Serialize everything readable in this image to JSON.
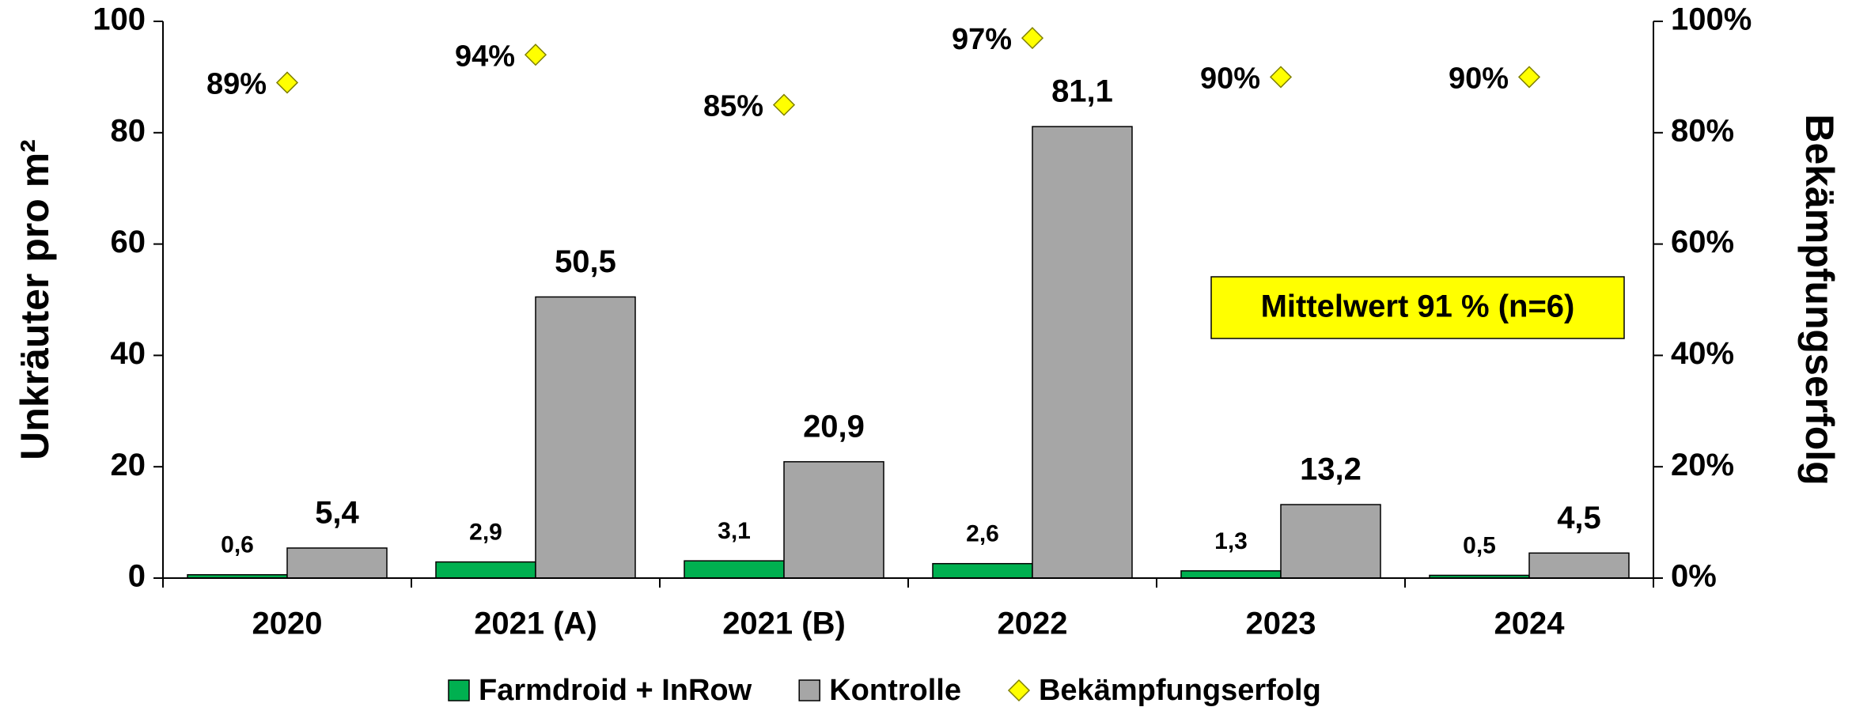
{
  "chart_data": {
    "type": "bar",
    "categories": [
      "2020",
      "2021 (A)",
      "2021 (B)",
      "2022",
      "2023",
      "2024"
    ],
    "series": [
      {
        "name": "Farmdroid + InRow",
        "color": "#00b050",
        "values": [
          0.6,
          2.9,
          3.1,
          2.6,
          1.3,
          0.5
        ],
        "value_labels": [
          "0,6",
          "2,9",
          "3,1",
          "2,6",
          "1,3",
          "0,5"
        ]
      },
      {
        "name": "Kontrolle",
        "color": "#a6a6a6",
        "values": [
          5.4,
          50.5,
          20.9,
          81.1,
          13.2,
          4.5
        ],
        "value_labels": [
          "5,4",
          "50,5",
          "20,9",
          "81,1",
          "13,2",
          "4,5"
        ]
      },
      {
        "name": "Bekämpfungserfolg",
        "color": "#ffff00",
        "type": "scatter",
        "axis": "y2",
        "values": [
          89,
          94,
          85,
          97,
          90,
          90
        ],
        "value_labels": [
          "89%",
          "94%",
          "85%",
          "97%",
          "90%",
          "90%"
        ]
      }
    ],
    "ylabel": "Unkräuter pro m²",
    "y2label": "Bekämpfungserfolg",
    "ylim": [
      0,
      100
    ],
    "yticks": [
      0,
      20,
      40,
      60,
      80,
      100
    ],
    "y2lim": [
      0,
      100
    ],
    "y2ticks": [
      {
        "value": 0,
        "label": "0%"
      },
      {
        "value": 20,
        "label": "20%"
      },
      {
        "value": 40,
        "label": "40%"
      },
      {
        "value": 60,
        "label": "60%"
      },
      {
        "value": 80,
        "label": "80%"
      },
      {
        "value": 100,
        "label": "100%"
      }
    ],
    "annotation": "Mittelwert 91 % (n=6)",
    "legend": "bottom"
  }
}
